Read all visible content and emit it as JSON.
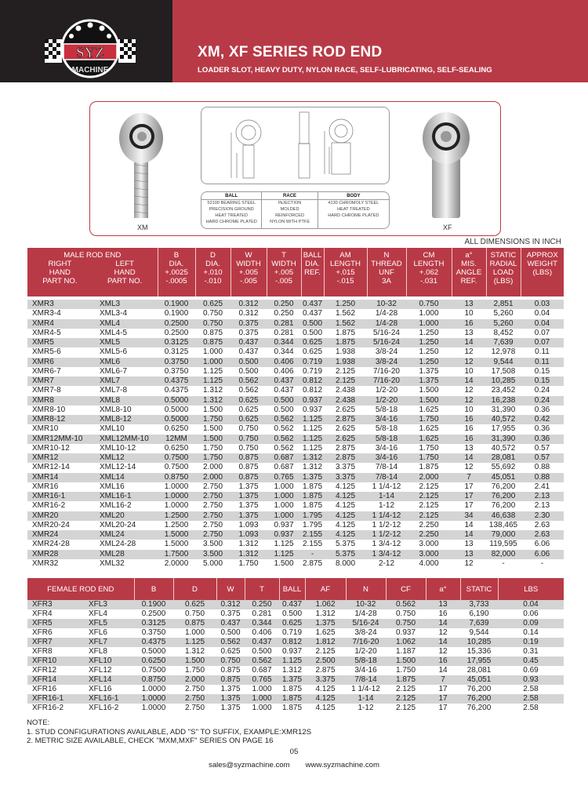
{
  "brand": {
    "logo_text": "SYZ",
    "logo_sub": "MACHINE",
    "colors": {
      "primary": "#b93a47",
      "dark": "#231f20",
      "row_alt": "#d4d4d4"
    }
  },
  "header": {
    "title": "XM, XF SERIES ROD END",
    "subtitle": "LOADER SLOT, HEAVY DUTY, NYLON RACE, SELF-LUBRICATING, SELF-SEALING"
  },
  "figure": {
    "left_label": "XM",
    "right_label": "XF",
    "materials": [
      {
        "head": "BALL",
        "lines": [
          "52100 BEARING STEEL",
          "PRECISION GROUND",
          "HEAT TREATED",
          "HARD CHROME PLATED"
        ]
      },
      {
        "head": "RACE",
        "lines": [
          "INJECTION",
          "MOLDED",
          "REINFORCED",
          "NYLON WITH PTFE"
        ]
      },
      {
        "head": "BODY",
        "lines": [
          "4130 CHROMOLY STEEL",
          "HEAT TREATED",
          "HARD CHROME PLATED",
          ""
        ]
      }
    ]
  },
  "all_dimensions": "ALL DIMENSIONS IN INCH",
  "male": {
    "header": {
      "group": "MALE ROD END",
      "right": "RIGHT\nHAND\nPART NO.",
      "left": "LEFT\nHAND\nPART NO.",
      "cols": [
        "B\nDIA.\n+.0025\n-.0005",
        "D\nDIA.\n+.010\n-.010",
        "W\nWIDTH\n+.005\n-.005",
        "T\nWIDTH\n+.005\n-.005",
        "BALL\nDIA.\nREF.",
        "AM\nLENGTH\n+.015\n-.015",
        "N\nTHREAD\nUNF\n3A",
        "CM\nLENGTH\n+.062\n-.031",
        "a°\nMIS.\nANGLE\nREF.",
        "STATIC\nRADIAL\nLOAD\n(LBS)",
        "APPROX\nWEIGHT\n(LBS)"
      ]
    },
    "rows": [
      [
        "XMR3",
        "XML3",
        "0.1900",
        "0.625",
        "0.312",
        "0.250",
        "0.437",
        "1.250",
        "10-32",
        "0.750",
        "13",
        "2,851",
        "0.03"
      ],
      [
        "XMR3-4",
        "XML3-4",
        "0.1900",
        "0.750",
        "0.312",
        "0.250",
        "0.437",
        "1.562",
        "1/4-28",
        "1.000",
        "10",
        "5,260",
        "0.04"
      ],
      [
        "XMR4",
        "XML4",
        "0.2500",
        "0.750",
        "0.375",
        "0.281",
        "0.500",
        "1.562",
        "1/4-28",
        "1.000",
        "16",
        "5,260",
        "0.04"
      ],
      [
        "XMR4-5",
        "XML4-5",
        "0.2500",
        "0.875",
        "0.375",
        "0.281",
        "0.500",
        "1.875",
        "5/16-24",
        "1.250",
        "13",
        "8,452",
        "0.07"
      ],
      [
        "XMR5",
        "XML5",
        "0.3125",
        "0.875",
        "0.437",
        "0.344",
        "0.625",
        "1.875",
        "5/16-24",
        "1.250",
        "14",
        "7,639",
        "0.07"
      ],
      [
        "XMR5-6",
        "XML5-6",
        "0.3125",
        "1.000",
        "0.437",
        "0.344",
        "0.625",
        "1.938",
        "3/8-24",
        "1.250",
        "12",
        "12,978",
        "0.11"
      ],
      [
        "XMR6",
        "XML6",
        "0.3750",
        "1.000",
        "0.500",
        "0.406",
        "0.719",
        "1.938",
        "3/8-24",
        "1.250",
        "12",
        "9,544",
        "0.11"
      ],
      [
        "XMR6-7",
        "XML6-7",
        "0.3750",
        "1.125",
        "0.500",
        "0.406",
        "0.719",
        "2.125",
        "7/16-20",
        "1.375",
        "10",
        "17,508",
        "0.15"
      ],
      [
        "XMR7",
        "XML7",
        "0.4375",
        "1.125",
        "0.562",
        "0.437",
        "0.812",
        "2.125",
        "7/16-20",
        "1.375",
        "14",
        "10,285",
        "0.15"
      ],
      [
        "XMR7-8",
        "XML7-8",
        "0.4375",
        "1.312",
        "0.562",
        "0.437",
        "0.812",
        "2.438",
        "1/2-20",
        "1.500",
        "12",
        "23,452",
        "0.24"
      ],
      [
        "XMR8",
        "XML8",
        "0.5000",
        "1.312",
        "0.625",
        "0.500",
        "0.937",
        "2.438",
        "1/2-20",
        "1.500",
        "12",
        "16,238",
        "0.24"
      ],
      [
        "XMR8-10",
        "XML8-10",
        "0.5000",
        "1.500",
        "0.625",
        "0.500",
        "0.937",
        "2.625",
        "5/8-18",
        "1.625",
        "10",
        "31,390",
        "0.36"
      ],
      [
        "XMR8-12",
        "XML8-12",
        "0.5000",
        "1.750",
        "0.625",
        "0.562",
        "1.125",
        "2.875",
        "3/4-16",
        "1.750",
        "16",
        "40,572",
        "0.42"
      ],
      [
        "XMR10",
        "XML10",
        "0.6250",
        "1.500",
        "0.750",
        "0.562",
        "1.125",
        "2.625",
        "5/8-18",
        "1.625",
        "16",
        "17,955",
        "0.36"
      ],
      [
        "XMR12MM-10",
        "XML12MM-10",
        "12MM",
        "1.500",
        "0.750",
        "0.562",
        "1.125",
        "2.625",
        "5/8-18",
        "1.625",
        "16",
        "31,390",
        "0.36"
      ],
      [
        "XMR10-12",
        "XML10-12",
        "0.6250",
        "1.750",
        "0.750",
        "0.562",
        "1.125",
        "2.875",
        "3/4-16",
        "1.750",
        "13",
        "40,572",
        "0.57"
      ],
      [
        "XMR12",
        "XML12",
        "0.7500",
        "1.750",
        "0.875",
        "0.687",
        "1.312",
        "2.875",
        "3/4-16",
        "1.750",
        "14",
        "28,081",
        "0.57"
      ],
      [
        "XMR12-14",
        "XML12-14",
        "0.7500",
        "2.000",
        "0.875",
        "0.687",
        "1.312",
        "3.375",
        "7/8-14",
        "1.875",
        "12",
        "55,692",
        "0.88"
      ],
      [
        "XMR14",
        "XML14",
        "0.8750",
        "2.000",
        "0.875",
        "0.765",
        "1.375",
        "3.375",
        "7/8-14",
        "2.000",
        "7",
        "45,051",
        "0.88"
      ],
      [
        "XMR16",
        "XML16",
        "1.0000",
        "2.750",
        "1.375",
        "1.000",
        "1.875",
        "4.125",
        "1 1/4-12",
        "2.125",
        "17",
        "76,200",
        "2.41"
      ],
      [
        "XMR16-1",
        "XML16-1",
        "1.0000",
        "2.750",
        "1.375",
        "1.000",
        "1.875",
        "4.125",
        "1-14",
        "2.125",
        "17",
        "76,200",
        "2.13"
      ],
      [
        "XMR16-2",
        "XML16-2",
        "1.0000",
        "2.750",
        "1.375",
        "1.000",
        "1.875",
        "4.125",
        "1-12",
        "2.125",
        "17",
        "76,200",
        "2.13"
      ],
      [
        "XMR20",
        "XML20",
        "1.2500",
        "2.750",
        "1.375",
        "1.000",
        "1.795",
        "4.125",
        "1 1/4-12",
        "2.125",
        "34",
        "46,638",
        "2.30"
      ],
      [
        "XMR20-24",
        "XML20-24",
        "1.2500",
        "2.750",
        "1.093",
        "0.937",
        "1.795",
        "4.125",
        "1 1/2-12",
        "2.250",
        "14",
        "138,465",
        "2.63"
      ],
      [
        "XMR24",
        "XML24",
        "1.5000",
        "2.750",
        "1.093",
        "0.937",
        "2.155",
        "4.125",
        "1 1/2-12",
        "2.250",
        "14",
        "79,000",
        "2.63"
      ],
      [
        "XMR24-28",
        "XML24-28",
        "1.5000",
        "3.500",
        "1.312",
        "1.125",
        "2.155",
        "5.375",
        "1 3/4-12",
        "3.000",
        "13",
        "119,595",
        "6.06"
      ],
      [
        "XMR28",
        "XML28",
        "1.7500",
        "3.500",
        "1.312",
        "1.125",
        "-",
        "5.375",
        "1 3/4-12",
        "3.000",
        "13",
        "82,000",
        "6.06"
      ],
      [
        "XMR32",
        "XML32",
        "2.0000",
        "5.000",
        "1.750",
        "1.500",
        "2.875",
        "8.000",
        "2-12",
        "4.000",
        "12",
        "-",
        "-"
      ]
    ]
  },
  "female": {
    "header": {
      "group": "FEMALE ROD END",
      "cols": [
        "B",
        "D",
        "W",
        "T",
        "BALL",
        "AF",
        "N",
        "CF",
        "a°",
        "STATIC",
        "LBS"
      ]
    },
    "rows": [
      [
        "XFR3",
        "XFL3",
        "0.1900",
        "0.625",
        "0.312",
        "0.250",
        "0.437",
        "1.062",
        "10-32",
        "0.562",
        "13",
        "3,733",
        "0.04"
      ],
      [
        "XFR4",
        "XFL4",
        "0.2500",
        "0.750",
        "0.375",
        "0.281",
        "0.500",
        "1.312",
        "1/4-28",
        "0.750",
        "16",
        "6,190",
        "0.06"
      ],
      [
        "XFR5",
        "XFL5",
        "0.3125",
        "0.875",
        "0.437",
        "0.344",
        "0.625",
        "1.375",
        "5/16-24",
        "0.750",
        "14",
        "7,639",
        "0.09"
      ],
      [
        "XFR6",
        "XFL6",
        "0.3750",
        "1.000",
        "0.500",
        "0.406",
        "0.719",
        "1.625",
        "3/8-24",
        "0.937",
        "12",
        "9,544",
        "0.14"
      ],
      [
        "XFR7",
        "XFL7",
        "0.4375",
        "1.125",
        "0.562",
        "0.437",
        "0.812",
        "1.812",
        "7/16-20",
        "1.062",
        "14",
        "10,285",
        "0.19"
      ],
      [
        "XFR8",
        "XFL8",
        "0.5000",
        "1.312",
        "0.625",
        "0.500",
        "0.937",
        "2.125",
        "1/2-20",
        "1.187",
        "12",
        "15,336",
        "0.31"
      ],
      [
        "XFR10",
        "XFL10",
        "0.6250",
        "1.500",
        "0.750",
        "0.562",
        "1.125",
        "2.500",
        "5/8-18",
        "1.500",
        "16",
        "17,955",
        "0.45"
      ],
      [
        "XFR12",
        "XFL12",
        "0.7500",
        "1.750",
        "0.875",
        "0.687",
        "1.312",
        "2.875",
        "3/4-16",
        "1.750",
        "14",
        "28,081",
        "0.69"
      ],
      [
        "XFR14",
        "XFL14",
        "0.8750",
        "2.000",
        "0.875",
        "0.765",
        "1.375",
        "3.375",
        "7/8-14",
        "1.875",
        "7",
        "45,051",
        "0.93"
      ],
      [
        "XFR16",
        "XFL16",
        "1.0000",
        "2.750",
        "1.375",
        "1.000",
        "1.875",
        "4.125",
        "1 1/4-12",
        "2.125",
        "17",
        "76,200",
        "2.58"
      ],
      [
        "XFR16-1",
        "XFL16-1",
        "1.0000",
        "2.750",
        "1.375",
        "1.000",
        "1.875",
        "4.125",
        "1-14",
        "2.125",
        "17",
        "76,200",
        "2.58"
      ],
      [
        "XFR16-2",
        "XFL16-2",
        "1.0000",
        "2.750",
        "1.375",
        "1.000",
        "1.875",
        "4.125",
        "1-12",
        "2.125",
        "17",
        "76,200",
        "2.58"
      ]
    ]
  },
  "notes": {
    "title": "NOTE:",
    "items": [
      "1. STUD CONFIGURATIONS AVAILABLE, ADD \"S\" TO SUFFIX, EXAMPLE:XMR12S",
      "2. METRIC SIZE AVAILABLE, CHECK \"MXM,MXF\" SERIES ON PAGE 16"
    ]
  },
  "page_number": "05",
  "footer": {
    "email": "sales@syzmachine.com",
    "website": "www.syzmachine.com"
  }
}
